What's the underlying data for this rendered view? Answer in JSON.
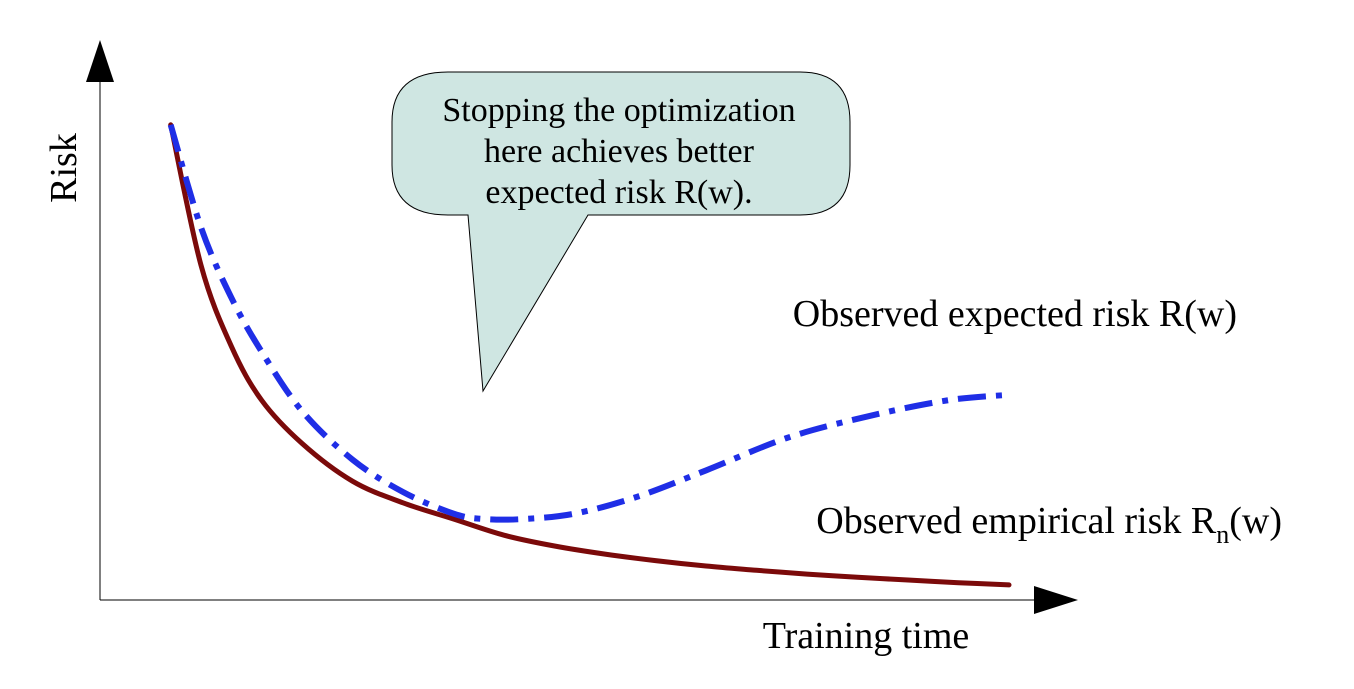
{
  "chart_data": {
    "type": "line",
    "xlabel": "Training time",
    "ylabel": "Risk",
    "xlim": [
      0,
      100
    ],
    "ylim": [
      0,
      100
    ],
    "grid": false,
    "series": [
      {
        "name": "Observed expected risk R(w)",
        "label_main": "Observed expected risk R(w)",
        "color": "#1f2ee6",
        "style": "dash-dot",
        "x": [
          7,
          10,
          13,
          16,
          20,
          25,
          30,
          35,
          38,
          42,
          47,
          53,
          60,
          68,
          76,
          84,
          90
        ],
        "y": [
          88,
          69,
          56,
          46,
          35,
          26,
          20,
          16,
          15,
          15,
          16,
          19,
          24,
          30,
          34,
          37,
          38
        ]
      },
      {
        "name": "Observed empirical risk Rn(w)",
        "label_main": "Observed empirical risk R",
        "label_sub": "n",
        "label_end": "(w)",
        "color": "#7b0a0a",
        "style": "solid",
        "x": [
          7,
          10,
          13,
          16,
          20,
          25,
          30,
          35,
          40,
          45,
          50,
          55,
          60,
          65,
          70,
          75,
          80,
          85,
          90
        ],
        "y": [
          88,
          62,
          47,
          37,
          29,
          22,
          18,
          15,
          12,
          10,
          8.5,
          7.3,
          6.3,
          5.5,
          4.8,
          4.2,
          3.7,
          3.2,
          2.8
        ]
      }
    ],
    "annotation": {
      "lines": [
        "Stopping the optimization",
        "here achieves better",
        "expected risk R(w)."
      ],
      "bubble_color": "#cfe6e2",
      "points_to_x": 38
    }
  }
}
